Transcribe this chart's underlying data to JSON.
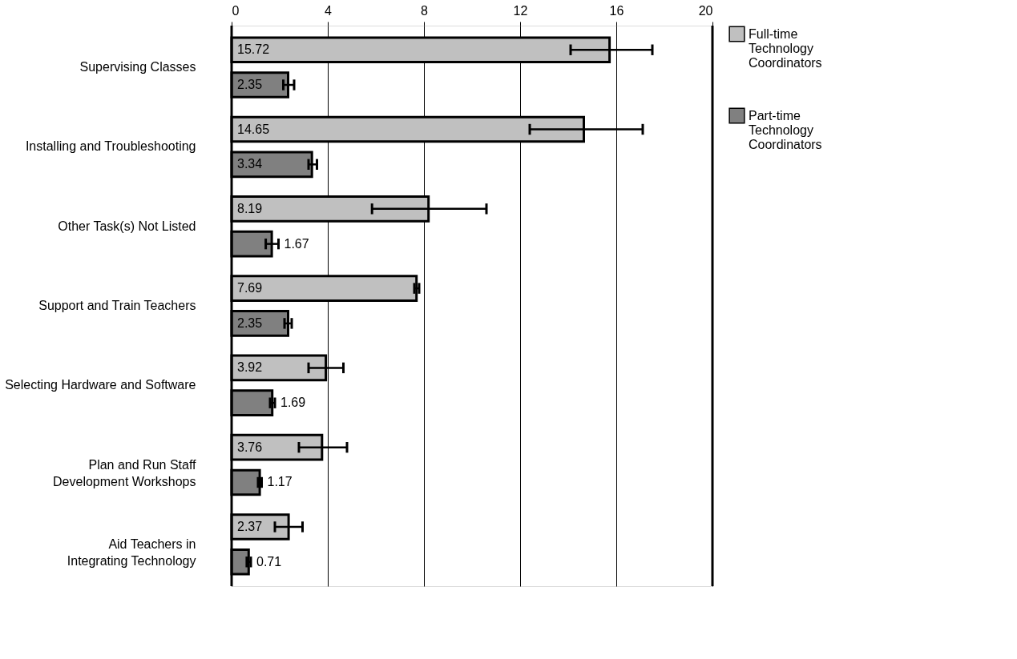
{
  "chart_data": {
    "type": "bar",
    "orientation": "horizontal",
    "categories": [
      "Supervising Classes",
      "Installing and Troubleshooting",
      "Other Task(s) Not Listed",
      "Support and Train Teachers",
      "Selecting Hardware and Software",
      "Plan and Run Staff\nDevelopment Workshops",
      "Aid Teachers in\nIntegrating Technology"
    ],
    "series": [
      {
        "name": "Full-time\nTechnology\nCoordinators",
        "color": "#c0c0c0",
        "values": [
          15.72,
          14.65,
          8.19,
          7.69,
          3.92,
          3.76,
          2.37
        ],
        "errors": [
          [
            14.1,
            17.5
          ],
          [
            12.4,
            17.1
          ],
          [
            5.84,
            10.6
          ],
          [
            7.6,
            7.8
          ],
          [
            3.2,
            4.65
          ],
          [
            2.8,
            4.8
          ],
          [
            1.8,
            2.95
          ]
        ]
      },
      {
        "name": "Part-time\nTechnology\nCoordinators",
        "color": "#808080",
        "values": [
          2.35,
          3.34,
          1.67,
          2.35,
          1.69,
          1.17,
          0.71
        ],
        "errors": [
          [
            2.15,
            2.6
          ],
          [
            3.2,
            3.55
          ],
          [
            1.42,
            1.95
          ],
          [
            2.2,
            2.5
          ],
          [
            1.6,
            1.8
          ],
          [
            1.1,
            1.25
          ],
          [
            0.63,
            0.8
          ]
        ]
      }
    ],
    "xlim": [
      0,
      20
    ],
    "xticks": [
      0,
      4,
      8,
      12,
      16,
      20
    ],
    "grid": "x",
    "legend": "top right",
    "data_labels": true
  }
}
